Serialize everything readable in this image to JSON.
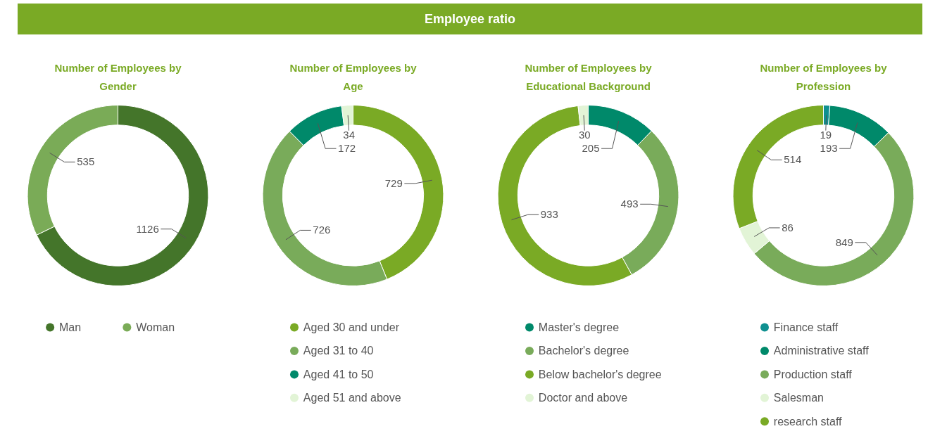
{
  "chart_data": [
    {
      "type": "donut",
      "title": "Number of Employees by Gender",
      "annotations": [
        "Employee ratio"
      ],
      "categories": [
        "Man",
        "Woman"
      ],
      "values": [
        1126,
        535
      ],
      "colors": [
        "#44752a",
        "#7aab57"
      ],
      "data_labels": true,
      "legend": "bottom"
    },
    {
      "type": "donut",
      "title": "Number of Employees by Age",
      "categories": [
        "Aged 30 and under",
        "Aged 31 to 40",
        "Aged 41 to 50",
        "Aged 51 and above"
      ],
      "values": [
        729,
        726,
        172,
        34
      ],
      "colors": [
        "#7aaa25",
        "#79ab5a",
        "#00896a",
        "#e2f4d6"
      ],
      "data_labels": true,
      "legend": "bottom"
    },
    {
      "type": "donut",
      "title": "Number of Employees by Educational Background",
      "categories": [
        "Master's degree",
        "Bachelor's degree",
        "Below bachelor's degree",
        "Doctor and above"
      ],
      "values": [
        205,
        493,
        933,
        30
      ],
      "colors": [
        "#00896a",
        "#79ab5a",
        "#7aaa25",
        "#e2f4d6"
      ],
      "data_labels": true,
      "legend": "bottom"
    },
    {
      "type": "donut",
      "title": "Number of Employees by Profession",
      "categories": [
        "Finance staff",
        "Administrative staff",
        "Production staff",
        "Salesman",
        "research staff"
      ],
      "values": [
        19,
        193,
        849,
        86,
        514
      ],
      "colors": [
        "#0f9090",
        "#00896a",
        "#79ab5a",
        "#e2f4d6",
        "#7aaa25"
      ],
      "data_labels": true,
      "legend": "bottom"
    }
  ]
}
